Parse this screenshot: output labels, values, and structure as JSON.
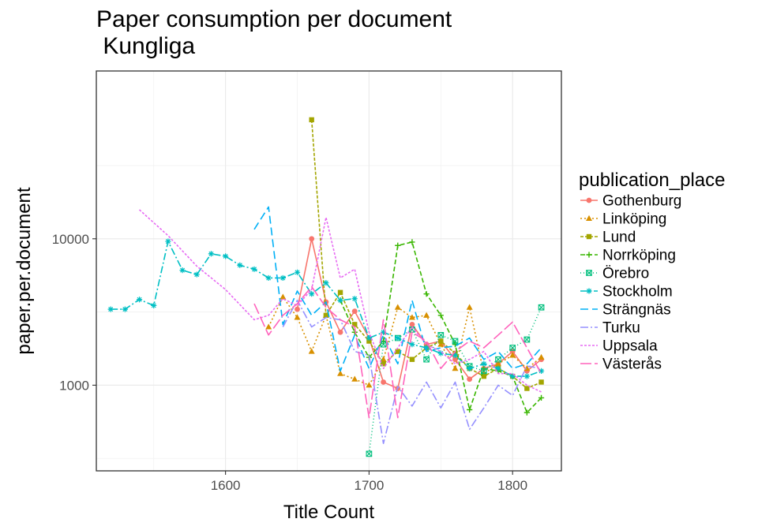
{
  "chart_data": {
    "type": "line",
    "title": "Paper consumption per document\n Kungliga",
    "xlabel": "Title Count",
    "ylabel": "paper.per.document",
    "x_ticks": [
      1600,
      1700,
      1800
    ],
    "y_ticks": [
      1000,
      10000
    ],
    "y_tick_labels": [
      "1000",
      "10000"
    ],
    "y_scale": "log",
    "xlim": [
      1510,
      1834
    ],
    "ylim": [
      260,
      140000
    ],
    "grid": true,
    "legend_title": "publication_place",
    "legend_position": "right",
    "series": [
      {
        "name": "Gothenburg",
        "color": "#F8766D",
        "dash": "",
        "marker": "circle",
        "points": [
          [
            1650,
            3300
          ],
          [
            1660,
            10000
          ],
          [
            1670,
            3700
          ],
          [
            1680,
            2300
          ],
          [
            1690,
            3200
          ],
          [
            1700,
            2100
          ],
          [
            1710,
            1050
          ],
          [
            1720,
            950
          ],
          [
            1730,
            2600
          ],
          [
            1740,
            1900
          ],
          [
            1750,
            2000
          ],
          [
            1760,
            1500
          ],
          [
            1770,
            1100
          ],
          [
            1780,
            1300
          ],
          [
            1790,
            1400
          ],
          [
            1800,
            1700
          ],
          [
            1810,
            1250
          ],
          [
            1820,
            1500
          ]
        ]
      },
      {
        "name": "Linköping",
        "color": "#D89000",
        "dash": "2,3",
        "marker": "triangle",
        "points": [
          [
            1630,
            2500
          ],
          [
            1640,
            4000
          ],
          [
            1650,
            2900
          ],
          [
            1660,
            1700
          ],
          [
            1670,
            3000
          ],
          [
            1680,
            1200
          ],
          [
            1690,
            1100
          ],
          [
            1700,
            1000
          ],
          [
            1710,
            1500
          ],
          [
            1720,
            3400
          ],
          [
            1730,
            2900
          ],
          [
            1740,
            3000
          ],
          [
            1750,
            1900
          ],
          [
            1760,
            1300
          ],
          [
            1770,
            3400
          ],
          [
            1780,
            1200
          ],
          [
            1790,
            1400
          ],
          [
            1800,
            1600
          ],
          [
            1810,
            1300
          ],
          [
            1820,
            1550
          ]
        ]
      },
      {
        "name": "Lund",
        "color": "#A3A500",
        "dash": "4,2",
        "marker": "square",
        "points": [
          [
            1660,
            65000
          ],
          [
            1670,
            3000
          ],
          [
            1680,
            4300
          ],
          [
            1690,
            2600
          ],
          [
            1700,
            2000
          ],
          [
            1710,
            1400
          ],
          [
            1720,
            1700
          ],
          [
            1730,
            1500
          ],
          [
            1740,
            1800
          ],
          [
            1750,
            2000
          ],
          [
            1760,
            1650
          ],
          [
            1770,
            1300
          ],
          [
            1780,
            1150
          ],
          [
            1790,
            1300
          ],
          [
            1800,
            1150
          ],
          [
            1810,
            950
          ],
          [
            1820,
            1050
          ]
        ]
      },
      {
        "name": "Norrköping",
        "color": "#39B600",
        "dash": "6,3",
        "marker": "plus",
        "points": [
          [
            1680,
            3800
          ],
          [
            1690,
            2300
          ],
          [
            1700,
            1550
          ],
          [
            1710,
            2000
          ],
          [
            1720,
            9000
          ],
          [
            1730,
            9500
          ],
          [
            1740,
            4200
          ],
          [
            1750,
            3000
          ],
          [
            1760,
            1900
          ],
          [
            1770,
            680
          ],
          [
            1780,
            1300
          ],
          [
            1790,
            1250
          ],
          [
            1800,
            1150
          ],
          [
            1810,
            650
          ],
          [
            1820,
            820
          ]
        ]
      },
      {
        "name": "Örebro",
        "color": "#00BF7D",
        "dash": "1,3",
        "marker": "boxtimes",
        "points": [
          [
            1700,
            340
          ],
          [
            1710,
            1900
          ],
          [
            1720,
            2100
          ],
          [
            1730,
            2400
          ],
          [
            1740,
            1500
          ],
          [
            1750,
            2200
          ],
          [
            1760,
            2000
          ],
          [
            1770,
            1350
          ],
          [
            1780,
            1250
          ],
          [
            1790,
            1500
          ],
          [
            1800,
            1800
          ],
          [
            1810,
            2050
          ],
          [
            1820,
            3400
          ]
        ]
      },
      {
        "name": "Stockholm",
        "color": "#00BFC4",
        "dash": "9,3,2,3",
        "marker": "asterisk",
        "points": [
          [
            1520,
            3300
          ],
          [
            1530,
            3300
          ],
          [
            1540,
            3850
          ],
          [
            1550,
            3500
          ],
          [
            1560,
            9600
          ],
          [
            1570,
            6100
          ],
          [
            1580,
            5700
          ],
          [
            1590,
            7900
          ],
          [
            1600,
            7600
          ],
          [
            1610,
            6600
          ],
          [
            1620,
            6200
          ],
          [
            1630,
            5400
          ],
          [
            1640,
            5400
          ],
          [
            1650,
            5900
          ],
          [
            1660,
            4200
          ],
          [
            1670,
            5000
          ],
          [
            1680,
            3800
          ],
          [
            1690,
            3900
          ],
          [
            1700,
            2100
          ],
          [
            1710,
            2300
          ],
          [
            1720,
            2100
          ],
          [
            1730,
            1900
          ],
          [
            1740,
            1800
          ],
          [
            1750,
            1650
          ],
          [
            1760,
            1600
          ],
          [
            1770,
            1300
          ],
          [
            1780,
            1400
          ],
          [
            1790,
            1300
          ],
          [
            1800,
            1150
          ],
          [
            1810,
            1150
          ],
          [
            1820,
            1250
          ]
        ]
      },
      {
        "name": "Strängnäs",
        "color": "#00B0F6",
        "dash": "10,5",
        "marker": "none",
        "points": [
          [
            1620,
            11600
          ],
          [
            1630,
            16500
          ],
          [
            1640,
            2600
          ],
          [
            1650,
            4400
          ],
          [
            1660,
            3000
          ],
          [
            1670,
            3700
          ],
          [
            1680,
            1250
          ],
          [
            1690,
            2200
          ],
          [
            1700,
            1300
          ],
          [
            1710,
            2200
          ],
          [
            1720,
            1400
          ],
          [
            1730,
            3800
          ],
          [
            1740,
            1700
          ],
          [
            1750,
            1800
          ],
          [
            1760,
            1850
          ],
          [
            1770,
            2100
          ],
          [
            1780,
            1500
          ],
          [
            1790,
            1700
          ],
          [
            1800,
            1300
          ],
          [
            1810,
            1400
          ],
          [
            1820,
            1800
          ]
        ]
      },
      {
        "name": "Turku",
        "color": "#9590FF",
        "dash": "10,3,2,3",
        "marker": "none",
        "points": [
          [
            1640,
            2500
          ],
          [
            1650,
            3800
          ],
          [
            1660,
            2500
          ],
          [
            1670,
            2900
          ],
          [
            1680,
            2800
          ],
          [
            1690,
            1700
          ],
          [
            1700,
            1600
          ],
          [
            1710,
            400
          ],
          [
            1720,
            980
          ],
          [
            1730,
            720
          ],
          [
            1740,
            1050
          ],
          [
            1750,
            700
          ],
          [
            1760,
            1050
          ],
          [
            1770,
            500
          ],
          [
            1780,
            700
          ],
          [
            1790,
            1000
          ],
          [
            1800,
            850
          ],
          [
            1810,
            1350
          ],
          [
            1820,
            1300
          ]
        ]
      },
      {
        "name": "Uppsala",
        "color": "#E76BF3",
        "dash": "3,2",
        "marker": "none",
        "points": [
          [
            1540,
            15800
          ],
          [
            1560,
            10500
          ],
          [
            1580,
            6500
          ],
          [
            1600,
            4500
          ],
          [
            1620,
            2800
          ],
          [
            1630,
            3000
          ],
          [
            1640,
            3900
          ],
          [
            1650,
            3500
          ],
          [
            1660,
            4500
          ],
          [
            1670,
            14000
          ],
          [
            1680,
            5400
          ],
          [
            1690,
            6200
          ],
          [
            1700,
            2300
          ],
          [
            1710,
            1300
          ],
          [
            1720,
            1800
          ],
          [
            1730,
            2500
          ],
          [
            1740,
            1900
          ],
          [
            1750,
            1700
          ],
          [
            1760,
            1400
          ],
          [
            1770,
            1500
          ],
          [
            1780,
            1700
          ],
          [
            1790,
            1200
          ],
          [
            1800,
            1200
          ],
          [
            1810,
            1000
          ],
          [
            1820,
            900
          ]
        ]
      },
      {
        "name": "Västerås",
        "color": "#FF62BC",
        "dash": "14,4",
        "marker": "none",
        "points": [
          [
            1620,
            3600
          ],
          [
            1630,
            2200
          ],
          [
            1640,
            3000
          ],
          [
            1650,
            3600
          ],
          [
            1660,
            4700
          ],
          [
            1670,
            3400
          ],
          [
            1680,
            2800
          ],
          [
            1690,
            2500
          ],
          [
            1700,
            600
          ],
          [
            1710,
            2800
          ],
          [
            1720,
            600
          ],
          [
            1730,
            2300
          ],
          [
            1740,
            2000
          ],
          [
            1750,
            1300
          ],
          [
            1760,
            1700
          ],
          [
            1770,
            2000
          ],
          [
            1780,
            1800
          ],
          [
            1790,
            2200
          ],
          [
            1800,
            2700
          ],
          [
            1810,
            1800
          ],
          [
            1820,
            1200
          ]
        ]
      }
    ]
  }
}
